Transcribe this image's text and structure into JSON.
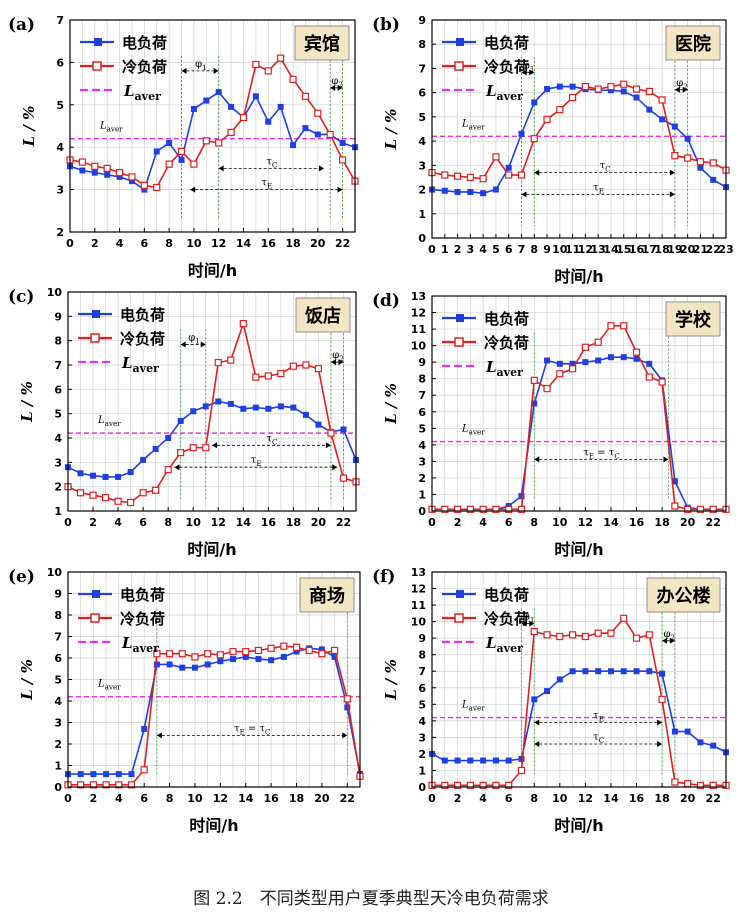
{
  "figure_caption": "图 2.2　不同类型用户夏季典型天冷电负荷需求",
  "colors": {
    "electric": "#1f3fe0",
    "cooling": "#e02020",
    "average": "#e830e8",
    "grid": "#d0d0d0"
  },
  "chart_data": [
    {
      "panel": "(a)",
      "type": "line",
      "title": "宾馆",
      "xlabel": "时间/h",
      "ylabel": "L / %",
      "xlim": [
        0,
        23
      ],
      "ylim": [
        2,
        7
      ],
      "xticks": [
        "0",
        "2",
        "4",
        "6",
        "8",
        "10",
        "12",
        "14",
        "16",
        "18",
        "20",
        "22"
      ],
      "yticks": [
        "2",
        "3",
        "4",
        "5",
        "6",
        "7"
      ],
      "legend": [
        "电负荷",
        "冷负荷",
        "Laver"
      ],
      "average_value": 4.2,
      "average_label": "Laver",
      "x": [
        0,
        1,
        2,
        3,
        4,
        5,
        6,
        7,
        8,
        9,
        10,
        11,
        12,
        13,
        14,
        15,
        16,
        17,
        18,
        19,
        20,
        21,
        22,
        23
      ],
      "series": [
        {
          "name": "电负荷",
          "values": [
            3.55,
            3.45,
            3.4,
            3.35,
            3.3,
            3.2,
            3.0,
            3.9,
            4.1,
            3.7,
            4.9,
            5.1,
            5.3,
            4.95,
            4.7,
            5.2,
            4.6,
            4.95,
            4.05,
            4.45,
            4.3,
            4.3,
            4.1,
            4.0
          ]
        },
        {
          "name": "冷负荷",
          "values": [
            3.7,
            3.65,
            3.55,
            3.5,
            3.4,
            3.3,
            3.1,
            3.05,
            3.6,
            3.9,
            3.6,
            4.15,
            4.1,
            4.35,
            4.7,
            5.95,
            5.8,
            6.1,
            5.6,
            5.2,
            4.8,
            4.3,
            3.7,
            3.2
          ]
        }
      ],
      "annotations": [
        "φ1",
        "τC",
        "τE",
        "φ2"
      ],
      "markers": {
        "phi1": [
          9,
          12
        ],
        "tauC": [
          12,
          20.5
        ],
        "tauE": [
          9.7,
          22
        ],
        "phi2": [
          21,
          22
        ]
      }
    },
    {
      "panel": "(b)",
      "type": "line",
      "title": "医院",
      "xlabel": "时间/h",
      "ylabel": "L / %",
      "xlim": [
        0,
        23
      ],
      "ylim": [
        0,
        9
      ],
      "xticks": [
        "0",
        "1",
        "2",
        "3",
        "4",
        "5",
        "6",
        "7",
        "8",
        "9",
        "10",
        "11",
        "12",
        "13",
        "14",
        "15",
        "16",
        "17",
        "18",
        "19",
        "20",
        "21",
        "22",
        "23"
      ],
      "yticks": [
        "0",
        "1",
        "2",
        "3",
        "4",
        "5",
        "6",
        "7",
        "8",
        "9"
      ],
      "legend": [
        "电负荷",
        "冷负荷",
        "Laver"
      ],
      "average_value": 4.2,
      "average_label": "Laver",
      "x": [
        0,
        1,
        2,
        3,
        4,
        5,
        6,
        7,
        8,
        9,
        10,
        11,
        12,
        13,
        14,
        15,
        16,
        17,
        18,
        19,
        20,
        21,
        22,
        23
      ],
      "series": [
        {
          "name": "电负荷",
          "values": [
            2.0,
            1.95,
            1.9,
            1.9,
            1.85,
            2.0,
            2.9,
            4.3,
            5.6,
            6.15,
            6.25,
            6.25,
            6.15,
            6.1,
            6.1,
            6.05,
            5.8,
            5.3,
            4.9,
            4.6,
            4.1,
            2.9,
            2.4,
            2.1
          ]
        },
        {
          "name": "冷负荷",
          "values": [
            2.7,
            2.6,
            2.55,
            2.5,
            2.45,
            3.35,
            2.6,
            2.6,
            4.1,
            4.9,
            5.3,
            5.8,
            6.25,
            6.15,
            6.25,
            6.35,
            6.15,
            6.05,
            5.7,
            3.4,
            3.3,
            3.15,
            3.1,
            2.8
          ]
        }
      ],
      "annotations": [
        "φ1",
        "τC",
        "τE",
        "φ2"
      ],
      "markers": {
        "phi1": [
          7,
          8
        ],
        "tauC": [
          8,
          19
        ],
        "tauE": [
          7,
          19
        ],
        "phi2": [
          19,
          20
        ]
      }
    },
    {
      "panel": "(c)",
      "type": "line",
      "title": "饭店",
      "xlabel": "时间/h",
      "ylabel": "L / %",
      "xlim": [
        0,
        23
      ],
      "ylim": [
        1,
        10
      ],
      "xticks": [
        "0",
        "2",
        "4",
        "6",
        "8",
        "10",
        "12",
        "14",
        "16",
        "18",
        "20",
        "22"
      ],
      "yticks": [
        "1",
        "2",
        "3",
        "4",
        "5",
        "6",
        "7",
        "8",
        "9",
        "10"
      ],
      "legend": [
        "电负荷",
        "冷负荷",
        "Laver"
      ],
      "average_value": 4.2,
      "average_label": "Laver",
      "x": [
        0,
        1,
        2,
        3,
        4,
        5,
        6,
        7,
        8,
        9,
        10,
        11,
        12,
        13,
        14,
        15,
        16,
        17,
        18,
        19,
        20,
        21,
        22,
        23
      ],
      "series": [
        {
          "name": "电负荷",
          "values": [
            2.8,
            2.55,
            2.45,
            2.4,
            2.4,
            2.6,
            3.1,
            3.55,
            4.0,
            4.7,
            5.1,
            5.3,
            5.5,
            5.4,
            5.2,
            5.25,
            5.2,
            5.3,
            5.25,
            4.95,
            4.55,
            4.25,
            4.35,
            3.1
          ]
        },
        {
          "name": "冷负荷",
          "values": [
            2.0,
            1.75,
            1.65,
            1.55,
            1.4,
            1.35,
            1.75,
            1.85,
            2.7,
            3.4,
            3.6,
            3.6,
            7.1,
            7.2,
            8.7,
            6.5,
            6.55,
            6.65,
            6.95,
            7.0,
            6.85,
            4.2,
            2.35,
            2.2
          ]
        }
      ],
      "annotations": [
        "φ1",
        "τC",
        "τE",
        "φ2"
      ],
      "markers": {
        "phi1": [
          9,
          11
        ],
        "tauC": [
          11.5,
          21
        ],
        "tauE": [
          8.5,
          21.5
        ],
        "phi2": [
          21,
          22
        ]
      }
    },
    {
      "panel": "(d)",
      "type": "line",
      "title": "学校",
      "xlabel": "时间/h",
      "ylabel": "L / %",
      "xlim": [
        0,
        23
      ],
      "ylim": [
        0,
        13
      ],
      "xticks": [
        "0",
        "2",
        "4",
        "6",
        "8",
        "10",
        "12",
        "14",
        "16",
        "18",
        "20",
        "22"
      ],
      "yticks": [
        "0",
        "1",
        "2",
        "3",
        "4",
        "5",
        "6",
        "7",
        "8",
        "9",
        "10",
        "11",
        "12",
        "13"
      ],
      "legend": [
        "电负荷",
        "冷负荷",
        "Laver"
      ],
      "average_value": 4.2,
      "average_label": "Laver",
      "x": [
        0,
        1,
        2,
        3,
        4,
        5,
        6,
        7,
        8,
        9,
        10,
        11,
        12,
        13,
        14,
        15,
        16,
        17,
        18,
        19,
        20,
        21,
        22,
        23
      ],
      "series": [
        {
          "name": "电负荷",
          "values": [
            0.1,
            0.1,
            0.1,
            0.1,
            0.1,
            0.1,
            0.3,
            0.9,
            6.5,
            9.1,
            8.9,
            8.9,
            9.0,
            9.1,
            9.3,
            9.3,
            9.2,
            8.9,
            7.9,
            1.8,
            0.2,
            0.1,
            0.1,
            0.1
          ]
        },
        {
          "name": "冷负荷",
          "values": [
            0.1,
            0.1,
            0.1,
            0.1,
            0.1,
            0.1,
            0.1,
            0.1,
            7.9,
            7.4,
            8.3,
            8.6,
            9.9,
            10.2,
            11.2,
            11.2,
            9.6,
            8.1,
            7.8,
            0.3,
            0.1,
            0.1,
            0.1,
            0.1
          ]
        }
      ],
      "annotations": [
        "τE = τC"
      ],
      "markers": {
        "tauEC": [
          8,
          18.5
        ]
      }
    },
    {
      "panel": "(e)",
      "type": "line",
      "title": "商场",
      "xlabel": "时间/h",
      "ylabel": "L / %",
      "xlim": [
        0,
        23
      ],
      "ylim": [
        0,
        10
      ],
      "xticks": [
        "0",
        "2",
        "4",
        "6",
        "8",
        "10",
        "12",
        "14",
        "16",
        "18",
        "20",
        "22"
      ],
      "yticks": [
        "0",
        "1",
        "2",
        "3",
        "4",
        "5",
        "6",
        "7",
        "8",
        "9",
        "10"
      ],
      "legend": [
        "电负荷",
        "冷负荷",
        "Laver"
      ],
      "average_value": 4.2,
      "average_label": "Laver",
      "x": [
        0,
        1,
        2,
        3,
        4,
        5,
        6,
        7,
        8,
        9,
        10,
        11,
        12,
        13,
        14,
        15,
        16,
        17,
        18,
        19,
        20,
        21,
        22,
        23
      ],
      "series": [
        {
          "name": "电负荷",
          "values": [
            0.6,
            0.6,
            0.6,
            0.6,
            0.6,
            0.6,
            2.7,
            5.7,
            5.7,
            5.55,
            5.55,
            5.7,
            5.85,
            5.95,
            6.05,
            5.95,
            5.9,
            6.05,
            6.3,
            6.45,
            6.4,
            6.05,
            3.7,
            0.6
          ]
        },
        {
          "name": "冷负荷",
          "values": [
            0.1,
            0.1,
            0.1,
            0.1,
            0.1,
            0.1,
            0.8,
            6.2,
            6.2,
            6.2,
            6.05,
            6.2,
            6.15,
            6.3,
            6.3,
            6.35,
            6.45,
            6.55,
            6.5,
            6.35,
            6.2,
            6.35,
            4.1,
            0.5
          ]
        }
      ],
      "annotations": [
        "τE = τC"
      ],
      "markers": {
        "tauEC": [
          7,
          22
        ]
      }
    },
    {
      "panel": "(f)",
      "type": "line",
      "title": "办公楼",
      "xlabel": "时间/h",
      "ylabel": "L / %",
      "xlim": [
        0,
        23
      ],
      "ylim": [
        0,
        13
      ],
      "xticks": [
        "0",
        "2",
        "4",
        "6",
        "8",
        "10",
        "12",
        "14",
        "16",
        "18",
        "20",
        "22"
      ],
      "yticks": [
        "0",
        "1",
        "2",
        "3",
        "4",
        "5",
        "6",
        "7",
        "8",
        "9",
        "10",
        "11",
        "12",
        "13"
      ],
      "legend": [
        "电负荷",
        "冷负荷",
        "Laver"
      ],
      "average_value": 4.2,
      "average_label": "Laver",
      "x": [
        0,
        1,
        2,
        3,
        4,
        5,
        6,
        7,
        8,
        9,
        10,
        11,
        12,
        13,
        14,
        15,
        16,
        17,
        18,
        19,
        20,
        21,
        22,
        23
      ],
      "series": [
        {
          "name": "电负荷",
          "values": [
            2.0,
            1.6,
            1.6,
            1.6,
            1.6,
            1.6,
            1.6,
            1.7,
            5.3,
            5.8,
            6.5,
            7.0,
            7.0,
            7.0,
            7.0,
            7.0,
            7.0,
            7.0,
            6.85,
            3.35,
            3.35,
            2.7,
            2.5,
            2.1
          ]
        },
        {
          "name": "冷负荷",
          "values": [
            0.1,
            0.1,
            0.1,
            0.1,
            0.1,
            0.1,
            0.1,
            1.0,
            9.4,
            9.2,
            9.1,
            9.2,
            9.1,
            9.3,
            9.3,
            10.2,
            9.0,
            9.2,
            5.3,
            0.3,
            0.2,
            0.1,
            0.1,
            0.1
          ]
        }
      ],
      "annotations": [
        "φ1",
        "τE",
        "τC",
        "φ2"
      ],
      "markers": {
        "phi1": [
          7,
          8
        ],
        "tauE": [
          8,
          18
        ],
        "tauC": [
          8,
          18
        ],
        "phi2": [
          18,
          19
        ]
      }
    }
  ]
}
